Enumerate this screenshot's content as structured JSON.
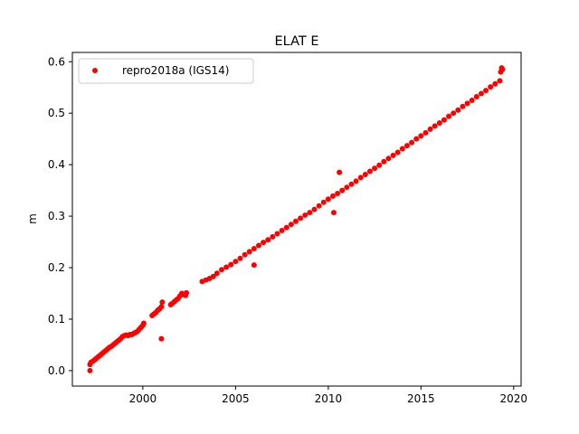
{
  "chart_data": {
    "type": "scatter",
    "title": "ELAT E",
    "xlabel": "",
    "ylabel": "m",
    "xlim": [
      1996.2,
      2020.4
    ],
    "ylim": [
      -0.03,
      0.618
    ],
    "xticks": [
      2000,
      2005,
      2010,
      2015,
      2020
    ],
    "xtick_labels": [
      "2000",
      "2005",
      "2010",
      "2015",
      "2020"
    ],
    "yticks": [
      0.0,
      0.1,
      0.2,
      0.3,
      0.4,
      0.5,
      0.6
    ],
    "ytick_labels": [
      "0.0",
      "0.1",
      "0.2",
      "0.3",
      "0.4",
      "0.5",
      "0.6"
    ],
    "grid": false,
    "legend_position": "top-left",
    "series": [
      {
        "name": "repro2018a (IGS14)",
        "color": "#ff0000",
        "marker": "circle",
        "points": [
          [
            1997.15,
            0.0
          ],
          [
            1997.15,
            0.012
          ],
          [
            1997.2,
            0.016
          ],
          [
            1997.3,
            0.018
          ],
          [
            1997.4,
            0.021
          ],
          [
            1997.5,
            0.024
          ],
          [
            1997.6,
            0.027
          ],
          [
            1997.7,
            0.03
          ],
          [
            1997.8,
            0.033
          ],
          [
            1997.9,
            0.036
          ],
          [
            1998.0,
            0.039
          ],
          [
            1998.1,
            0.042
          ],
          [
            1998.2,
            0.045
          ],
          [
            1998.3,
            0.047
          ],
          [
            1998.4,
            0.05
          ],
          [
            1998.5,
            0.053
          ],
          [
            1998.6,
            0.056
          ],
          [
            1998.7,
            0.059
          ],
          [
            1998.8,
            0.062
          ],
          [
            1998.9,
            0.066
          ],
          [
            1999.0,
            0.068
          ],
          [
            1999.1,
            0.069
          ],
          [
            1999.2,
            0.068
          ],
          [
            1999.3,
            0.07
          ],
          [
            1999.4,
            0.07
          ],
          [
            1999.5,
            0.072
          ],
          [
            1999.6,
            0.074
          ],
          [
            1999.7,
            0.076
          ],
          [
            1999.8,
            0.08
          ],
          [
            1999.9,
            0.084
          ],
          [
            2000.0,
            0.088
          ],
          [
            2000.05,
            0.092
          ],
          [
            2000.5,
            0.107
          ],
          [
            2000.6,
            0.11
          ],
          [
            2000.7,
            0.113
          ],
          [
            2000.8,
            0.117
          ],
          [
            2000.9,
            0.12
          ],
          [
            2001.0,
            0.124
          ],
          [
            2001.05,
            0.133
          ],
          [
            2001.0,
            0.062
          ],
          [
            2001.5,
            0.128
          ],
          [
            2001.6,
            0.131
          ],
          [
            2001.7,
            0.134
          ],
          [
            2001.8,
            0.137
          ],
          [
            2001.9,
            0.14
          ],
          [
            2002.0,
            0.145
          ],
          [
            2002.1,
            0.15
          ],
          [
            2002.2,
            0.148
          ],
          [
            2002.3,
            0.146
          ],
          [
            2002.35,
            0.151
          ],
          [
            2003.2,
            0.173
          ],
          [
            2003.4,
            0.176
          ],
          [
            2003.6,
            0.179
          ],
          [
            2003.8,
            0.183
          ],
          [
            2004.0,
            0.189
          ],
          [
            2004.25,
            0.196
          ],
          [
            2004.5,
            0.201
          ],
          [
            2004.75,
            0.206
          ],
          [
            2005.0,
            0.212
          ],
          [
            2005.25,
            0.218
          ],
          [
            2005.5,
            0.225
          ],
          [
            2005.75,
            0.231
          ],
          [
            2006.0,
            0.237
          ],
          [
            2006.0,
            0.205
          ],
          [
            2006.25,
            0.243
          ],
          [
            2006.5,
            0.249
          ],
          [
            2006.75,
            0.254
          ],
          [
            2007.0,
            0.26
          ],
          [
            2007.25,
            0.266
          ],
          [
            2007.5,
            0.272
          ],
          [
            2007.75,
            0.278
          ],
          [
            2008.0,
            0.284
          ],
          [
            2008.25,
            0.29
          ],
          [
            2008.5,
            0.296
          ],
          [
            2008.75,
            0.302
          ],
          [
            2009.0,
            0.307
          ],
          [
            2009.25,
            0.313
          ],
          [
            2009.5,
            0.32
          ],
          [
            2009.75,
            0.327
          ],
          [
            2010.0,
            0.333
          ],
          [
            2010.25,
            0.339
          ],
          [
            2010.3,
            0.307
          ],
          [
            2010.5,
            0.344
          ],
          [
            2010.6,
            0.385
          ],
          [
            2010.75,
            0.35
          ],
          [
            2011.0,
            0.356
          ],
          [
            2011.25,
            0.362
          ],
          [
            2011.5,
            0.368
          ],
          [
            2011.75,
            0.375
          ],
          [
            2012.0,
            0.381
          ],
          [
            2012.25,
            0.387
          ],
          [
            2012.5,
            0.393
          ],
          [
            2012.75,
            0.399
          ],
          [
            2013.0,
            0.406
          ],
          [
            2013.25,
            0.412
          ],
          [
            2013.5,
            0.418
          ],
          [
            2013.75,
            0.424
          ],
          [
            2014.0,
            0.431
          ],
          [
            2014.25,
            0.437
          ],
          [
            2014.5,
            0.443
          ],
          [
            2014.75,
            0.45
          ],
          [
            2015.0,
            0.456
          ],
          [
            2015.25,
            0.462
          ],
          [
            2015.5,
            0.469
          ],
          [
            2015.75,
            0.475
          ],
          [
            2016.0,
            0.481
          ],
          [
            2016.25,
            0.487
          ],
          [
            2016.5,
            0.494
          ],
          [
            2016.75,
            0.5
          ],
          [
            2017.0,
            0.506
          ],
          [
            2017.25,
            0.513
          ],
          [
            2017.5,
            0.519
          ],
          [
            2017.75,
            0.525
          ],
          [
            2018.0,
            0.532
          ],
          [
            2018.25,
            0.538
          ],
          [
            2018.5,
            0.544
          ],
          [
            2018.75,
            0.551
          ],
          [
            2019.0,
            0.557
          ],
          [
            2019.25,
            0.563
          ],
          [
            2019.4,
            0.585
          ],
          [
            2019.35,
            0.588
          ],
          [
            2019.3,
            0.58
          ]
        ]
      }
    ]
  }
}
